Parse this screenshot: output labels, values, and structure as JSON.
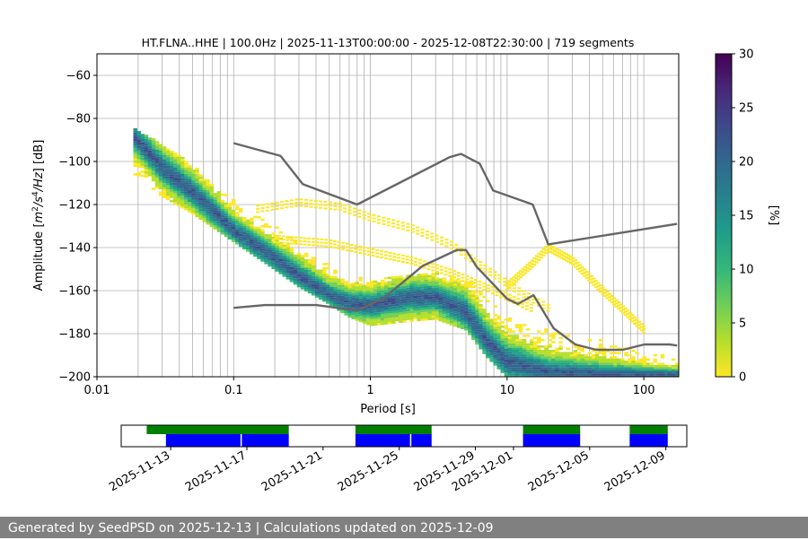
{
  "chart_data": {
    "type": "heatmap",
    "title": "HT.FLNA..HHE | 100.0Hz | 2025-11-13T00:00:00 - 2025-12-08T22:30:00 | 719 segments",
    "xlabel": "Period [s]",
    "ylabel_parts": [
      "Amplitude [",
      "m",
      "2",
      "/s",
      "4",
      "/Hz",
      "] [dB]"
    ],
    "x_scale": "log",
    "xlim": [
      0.01,
      180
    ],
    "ylim": [
      -200,
      -50
    ],
    "grid": true,
    "x_ticks": [
      0.01,
      0.1,
      1,
      10,
      100
    ],
    "x_tick_labels": [
      "0.01",
      "0.1",
      "1",
      "10",
      "100"
    ],
    "y_ticks": [
      -200,
      -180,
      -160,
      -140,
      -120,
      -100,
      -80,
      -60
    ],
    "y_tick_labels": [
      "−200",
      "−180",
      "−160",
      "−140",
      "−120",
      "−100",
      "−80",
      "−60"
    ],
    "colorbar": {
      "label": "[%]",
      "range": [
        0,
        30
      ],
      "ticks": [
        0,
        5,
        10,
        15,
        20,
        25,
        30
      ],
      "tick_labels": [
        "0",
        "5",
        "10",
        "15",
        "20",
        "25",
        "30"
      ],
      "colormap": [
        "#fde725",
        "#b5de2b",
        "#6ece58",
        "#35b779",
        "#1f9e89",
        "#26828e",
        "#31688e",
        "#3e4989",
        "#482878",
        "#440154"
      ]
    },
    "pdf_mode_curve": [
      [
        0.019,
        -89
      ],
      [
        0.03,
        -103
      ],
      [
        0.05,
        -114
      ],
      [
        0.1,
        -132
      ],
      [
        0.2,
        -145
      ],
      [
        0.3,
        -153
      ],
      [
        0.5,
        -162
      ],
      [
        0.7,
        -166
      ],
      [
        1,
        -167
      ],
      [
        2,
        -163
      ],
      [
        3,
        -163
      ],
      [
        5,
        -170
      ],
      [
        7,
        -183
      ],
      [
        10,
        -193
      ],
      [
        20,
        -198
      ],
      [
        50,
        -199
      ],
      [
        175,
        -199
      ]
    ],
    "pdf_spread_band": [
      [
        0.019,
        -85,
        -106
      ],
      [
        0.03,
        -92,
        -116
      ],
      [
        0.05,
        -101,
        -124
      ],
      [
        0.1,
        -118,
        -137
      ],
      [
        0.2,
        -130,
        -150
      ],
      [
        0.3,
        -138,
        -158
      ],
      [
        0.5,
        -148,
        -166
      ],
      [
        0.7,
        -153,
        -172
      ],
      [
        1,
        -155,
        -176
      ],
      [
        2,
        -152,
        -174
      ],
      [
        3,
        -152,
        -173
      ],
      [
        5,
        -152,
        -178
      ],
      [
        7,
        -163,
        -190
      ],
      [
        10,
        -172,
        -200
      ],
      [
        20,
        -178,
        -200
      ],
      [
        50,
        -183,
        -200
      ],
      [
        100,
        -188,
        -200
      ],
      [
        175,
        -191,
        -200
      ]
    ],
    "pdf_secondary_traces": [
      {
        "points": [
          [
            0.15,
            -122
          ],
          [
            0.3,
            -119
          ],
          [
            0.6,
            -121
          ],
          [
            1,
            -126
          ],
          [
            2,
            -131
          ],
          [
            4,
            -139
          ],
          [
            7,
            -150
          ],
          [
            12,
            -160
          ],
          [
            20,
            -168
          ]
        ]
      },
      {
        "points": [
          [
            0.2,
            -136
          ],
          [
            0.5,
            -138
          ],
          [
            1,
            -142
          ],
          [
            2,
            -146
          ],
          [
            4,
            -152
          ],
          [
            8,
            -160
          ],
          [
            15,
            -168
          ]
        ]
      },
      {
        "points": [
          [
            10,
            -158
          ],
          [
            15,
            -148
          ],
          [
            20,
            -140
          ],
          [
            30,
            -146
          ],
          [
            50,
            -160
          ],
          [
            80,
            -172
          ],
          [
            100,
            -178
          ]
        ]
      }
    ],
    "noise_model_high": [
      [
        0.1,
        -91.5
      ],
      [
        0.22,
        -97.4
      ],
      [
        0.32,
        -110.5
      ],
      [
        0.8,
        -120
      ],
      [
        3.8,
        -98
      ],
      [
        4.6,
        -96.5
      ],
      [
        6.3,
        -101
      ],
      [
        7.9,
        -113.5
      ],
      [
        15.4,
        -120
      ],
      [
        20,
        -138.5
      ],
      [
        175,
        -129
      ]
    ],
    "noise_model_low": [
      [
        0.1,
        -168
      ],
      [
        0.17,
        -166.7
      ],
      [
        0.4,
        -166.7
      ],
      [
        0.8,
        -169.2
      ],
      [
        1.24,
        -163.7
      ],
      [
        2.4,
        -148.6
      ],
      [
        4.3,
        -141.1
      ],
      [
        5,
        -141.1
      ],
      [
        6,
        -149
      ],
      [
        10,
        -163.8
      ],
      [
        12,
        -166.2
      ],
      [
        15.6,
        -162.1
      ],
      [
        21.9,
        -177.5
      ],
      [
        31.6,
        -185
      ],
      [
        45,
        -187.5
      ],
      [
        70,
        -187.5
      ],
      [
        101,
        -185
      ],
      [
        154,
        -185
      ],
      [
        175,
        -185.5
      ]
    ],
    "data_availability": {
      "x_ticks": [
        2.6,
        6.6,
        10.6,
        14.6,
        18.6,
        20.6,
        24.6,
        28.6
      ],
      "x_tick_labels": [
        "2025-11-13",
        "2025-11-17",
        "2025-11-21",
        "2025-11-25",
        "2025-11-29",
        "2025-12-01",
        "2025-12-05",
        "2025-12-09"
      ],
      "xlim": [
        0,
        29.7
      ],
      "green_spans": [
        [
          1.34,
          8.8
        ],
        [
          12.3,
          16.3
        ],
        [
          21.1,
          24.1
        ],
        [
          26.7,
          28.7
        ]
      ],
      "blue_spans": [
        [
          2.35,
          8.8
        ],
        [
          12.3,
          16.3
        ],
        [
          21.1,
          24.1
        ],
        [
          26.7,
          28.7
        ]
      ],
      "blue_gap_marks": [
        6.3,
        15.2
      ],
      "colors": {
        "green": "#008000",
        "blue": "#0000ff"
      }
    }
  },
  "footer_text": "Generated by SeedPSD on 2025-12-13 | Calculations updated on 2025-12-09"
}
